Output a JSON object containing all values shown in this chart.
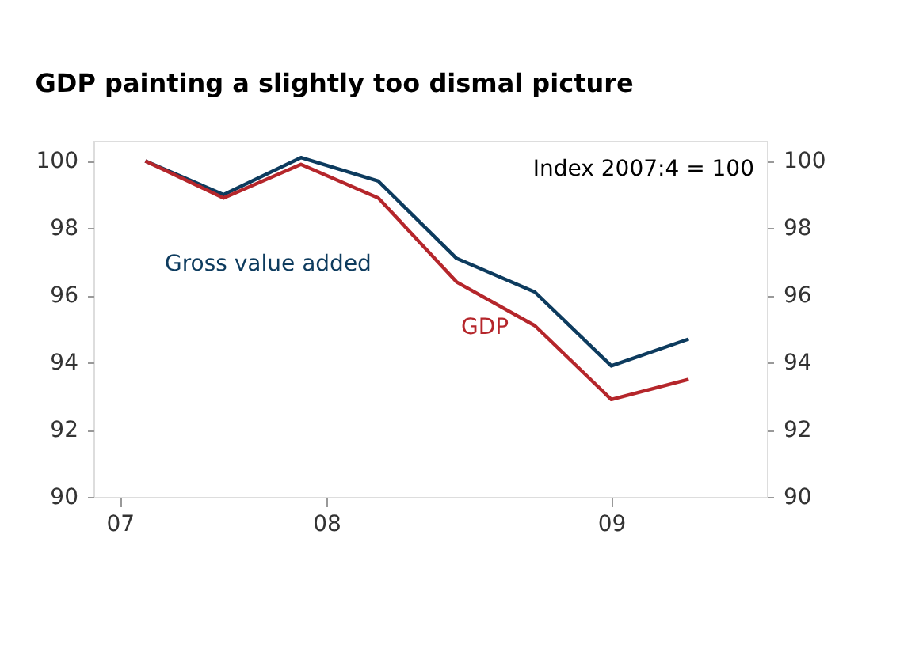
{
  "chart_data": {
    "type": "line",
    "title": "GDP painting a slightly too dismal picture",
    "x": [
      "2007-10",
      "2008-01",
      "2008-04",
      "2008-07",
      "2008-10",
      "2009-01",
      "2009-04",
      "2009-07"
    ],
    "series": [
      {
        "name": "Gross value added",
        "color": "#0d3b5e",
        "values": [
          100,
          99.0,
          100.1,
          99.4,
          97.1,
          96.1,
          93.9,
          94.7
        ]
      },
      {
        "name": "GDP",
        "color": "#b5262b",
        "values": [
          100,
          98.9,
          99.9,
          98.9,
          96.4,
          95.1,
          92.9,
          93.5
        ]
      }
    ],
    "xlim": [
      "2007-08",
      "2009-10"
    ],
    "xticks": [
      {
        "value": "2007-09",
        "label": "07"
      },
      {
        "value": "2008-05",
        "label": "08"
      },
      {
        "value": "2009-04",
        "label": "09"
      }
    ],
    "ylim": [
      90,
      100.6
    ],
    "yticks": [
      90,
      92,
      94,
      96,
      98,
      100
    ],
    "y2lim": [
      90,
      100.6
    ],
    "y2ticks": [
      90,
      92,
      94,
      96,
      98,
      100
    ],
    "annotations": [
      "Index 2007:4 = 100"
    ],
    "grid": false,
    "legend": false,
    "marker": "none",
    "line_style": "solid"
  }
}
